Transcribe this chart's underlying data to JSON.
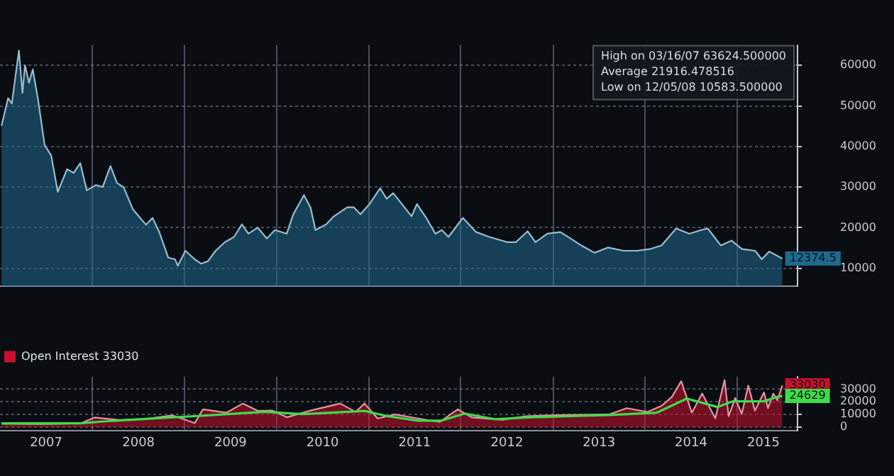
{
  "chart_data": [
    {
      "type": "area",
      "xlim": [
        "2006-12-31",
        "2015-08-28"
      ],
      "ylim": [
        5500,
        65000
      ],
      "yticks": [
        10000,
        20000,
        30000,
        40000,
        50000,
        60000
      ],
      "xticks": [
        {
          "value": "2008-01-01",
          "label": null
        },
        {
          "value": "2009-01-01",
          "label": null
        },
        {
          "value": "2010-01-01",
          "label": null
        },
        {
          "value": "2011-01-01",
          "label": null
        },
        {
          "value": "2012-01-01",
          "label": null
        },
        {
          "value": "2013-01-01",
          "label": null
        },
        {
          "value": "2014-01-01",
          "label": null
        },
        {
          "value": "2015-01-01",
          "label": null
        }
      ],
      "tick_labels": "y",
      "grid": true,
      "series": [
        {
          "color": "#1f6a8f",
          "x": [
            "2007-01-06",
            "2007-02-01",
            "2007-02-16",
            "2007-03-16",
            "2007-03-30",
            "2007-04-09",
            "2007-04-25",
            "2007-05-10",
            "2007-05-31",
            "2007-06-26",
            "2007-07-22",
            "2007-08-17",
            "2007-09-23",
            "2007-10-19",
            "2007-11-14",
            "2007-12-10",
            "2008-01-16",
            "2008-02-11",
            "2008-03-13",
            "2008-04-08",
            "2008-05-04",
            "2008-06-10",
            "2008-08-01",
            "2008-08-27",
            "2008-09-22",
            "2008-10-28",
            "2008-11-24",
            "2008-12-05",
            "2009-01-04",
            "2009-02-10",
            "2009-03-08",
            "2009-04-03",
            "2009-05-04",
            "2009-06-09",
            "2009-07-16",
            "2009-08-16",
            "2009-09-11",
            "2009-10-18",
            "2009-11-23",
            "2009-12-25",
            "2010-02-10",
            "2010-03-08",
            "2010-04-19",
            "2010-05-15",
            "2010-06-04",
            "2010-07-16",
            "2010-08-16",
            "2010-10-08",
            "2010-11-03",
            "2010-11-29",
            "2011-01-04",
            "2011-02-15",
            "2011-03-13",
            "2011-04-08",
            "2011-06-20",
            "2011-07-11",
            "2011-08-17",
            "2011-09-22",
            "2011-10-18",
            "2011-11-13",
            "2012-01-09",
            "2012-03-02",
            "2012-04-23",
            "2012-07-05",
            "2012-08-06",
            "2012-09-22",
            "2012-10-23",
            "2012-12-09",
            "2013-01-30",
            "2013-03-12",
            "2013-04-23",
            "2013-06-14",
            "2013-08-06",
            "2013-10-07",
            "2013-11-28",
            "2014-01-19",
            "2014-03-07",
            "2014-05-04",
            "2014-06-25",
            "2014-08-11",
            "2014-09-06",
            "2014-10-28",
            "2014-12-09",
            "2015-01-20",
            "2015-03-13",
            "2015-04-08",
            "2015-05-08",
            "2015-06-29"
          ],
          "values": [
            45100,
            51900,
            50600,
            63624.5,
            53200,
            60000,
            55700,
            59000,
            51500,
            40300,
            37800,
            28800,
            34400,
            33500,
            35900,
            29200,
            30500,
            30000,
            35200,
            31000,
            30000,
            24500,
            20700,
            22400,
            19000,
            12600,
            12200,
            10583.5,
            14300,
            12200,
            11100,
            11700,
            14300,
            16400,
            17700,
            20800,
            18500,
            20000,
            17300,
            19400,
            18500,
            23300,
            28000,
            25000,
            19400,
            20800,
            22800,
            25000,
            25000,
            23300,
            25800,
            29700,
            27100,
            28500,
            22800,
            25800,
            22400,
            18500,
            19400,
            17700,
            22400,
            18900,
            17700,
            16400,
            16400,
            19100,
            16400,
            18500,
            18900,
            17300,
            15600,
            13800,
            15100,
            14300,
            14300,
            14700,
            15600,
            19800,
            18500,
            19400,
            19800,
            15600,
            16800,
            14700,
            14300,
            12200,
            14100,
            12374.5
          ]
        }
      ],
      "annotations": [
        "High on 03/16/07 63624.500000",
        "Average 21916.478516",
        "Low on 12/05/08 10583.500000",
        {
          "text": "12374.5",
          "x": "2015-06-29",
          "y": 12374.5
        }
      ]
    },
    {
      "type": "area",
      "xlim": [
        "2006-12-31",
        "2015-08-28"
      ],
      "ylim": [
        -3000,
        40000
      ],
      "yticks": [
        0,
        10000,
        20000,
        30000
      ],
      "xticks": [
        {
          "value": "2007-07-02",
          "label": "2007"
        },
        {
          "value": "2008-01-01",
          "label": null
        },
        {
          "value": "2008-07-02",
          "label": "2008"
        },
        {
          "value": "2009-01-01",
          "label": null
        },
        {
          "value": "2009-07-02",
          "label": "2009"
        },
        {
          "value": "2010-01-01",
          "label": null
        },
        {
          "value": "2010-07-02",
          "label": "2010"
        },
        {
          "value": "2011-01-01",
          "label": null
        },
        {
          "value": "2011-07-02",
          "label": "2011"
        },
        {
          "value": "2012-01-01",
          "label": null
        },
        {
          "value": "2012-07-02",
          "label": "2012"
        },
        {
          "value": "2013-01-01",
          "label": null
        },
        {
          "value": "2013-07-02",
          "label": "2013"
        },
        {
          "value": "2014-01-01",
          "label": null
        },
        {
          "value": "2014-07-02",
          "label": "2014"
        },
        {
          "value": "2015-01-01",
          "label": null
        },
        {
          "value": "2015-04-15",
          "label": "2015"
        }
      ],
      "grid": true,
      "legend": "top left",
      "series": [
        {
          "name": "Open Interest 33030",
          "color": "#c8102e",
          "x": [
            "2007-01-06",
            "2007-06-15",
            "2007-11-15",
            "2008-01-10",
            "2008-04-15",
            "2008-08-01",
            "2008-11-15",
            "2009-02-10",
            "2009-03-15",
            "2009-06-15",
            "2009-08-20",
            "2009-10-20",
            "2009-12-15",
            "2010-02-10",
            "2010-05-15",
            "2010-09-10",
            "2010-11-10",
            "2010-12-15",
            "2011-02-05",
            "2011-04-15",
            "2011-07-15",
            "2011-10-10",
            "2011-12-20",
            "2012-02-15",
            "2012-06-15",
            "2012-09-15",
            "2013-02-15",
            "2013-08-10",
            "2013-10-20",
            "2014-01-10",
            "2014-03-07",
            "2014-04-17",
            "2014-05-24",
            "2014-07-05",
            "2014-08-15",
            "2014-10-06",
            "2014-11-12",
            "2014-11-28",
            "2014-12-24",
            "2015-01-19",
            "2015-02-14",
            "2015-03-12",
            "2015-04-17",
            "2015-05-03",
            "2015-05-24",
            "2015-06-09",
            "2015-06-29"
          ],
          "values": [
            2700,
            2500,
            3000,
            7600,
            5700,
            6500,
            9300,
            3200,
            14100,
            11400,
            18700,
            12800,
            13100,
            7800,
            13100,
            18700,
            12000,
            18700,
            6900,
            10000,
            6900,
            4100,
            14100,
            7600,
            5800,
            8700,
            9600,
            10000,
            15000,
            12000,
            16800,
            23900,
            36400,
            11400,
            26600,
            7000,
            37200,
            8700,
            23000,
            10500,
            32800,
            13100,
            27500,
            15000,
            26600,
            21300,
            33030
          ]
        },
        {
          "type": "line",
          "color": "#3ddc4a",
          "x": [
            "2007-01-06",
            "2007-11-15",
            "2008-02-15",
            "2008-06-15",
            "2008-11-15",
            "2009-02-15",
            "2009-08-15",
            "2009-11-15",
            "2010-04-15",
            "2010-12-15",
            "2011-03-15",
            "2011-07-15",
            "2011-10-15",
            "2012-01-15",
            "2012-05-15",
            "2012-09-15",
            "2013-03-15",
            "2013-08-15",
            "2014-02-15",
            "2014-06-15",
            "2014-10-15",
            "2014-12-15",
            "2015-04-15",
            "2015-06-09",
            "2015-06-29"
          ],
          "values": [
            3000,
            3000,
            4500,
            6000,
            7800,
            8700,
            11000,
            12100,
            10300,
            12800,
            8700,
            5100,
            5100,
            10700,
            6300,
            7600,
            8700,
            9600,
            11400,
            22600,
            15900,
            20400,
            20400,
            24000,
            24629
          ]
        }
      ],
      "annotations": [
        {
          "text": "33030",
          "x": "2015-06-29",
          "y": 33030
        },
        {
          "text": "24629",
          "x": "2015-06-29",
          "y": 24629
        }
      ]
    }
  ]
}
